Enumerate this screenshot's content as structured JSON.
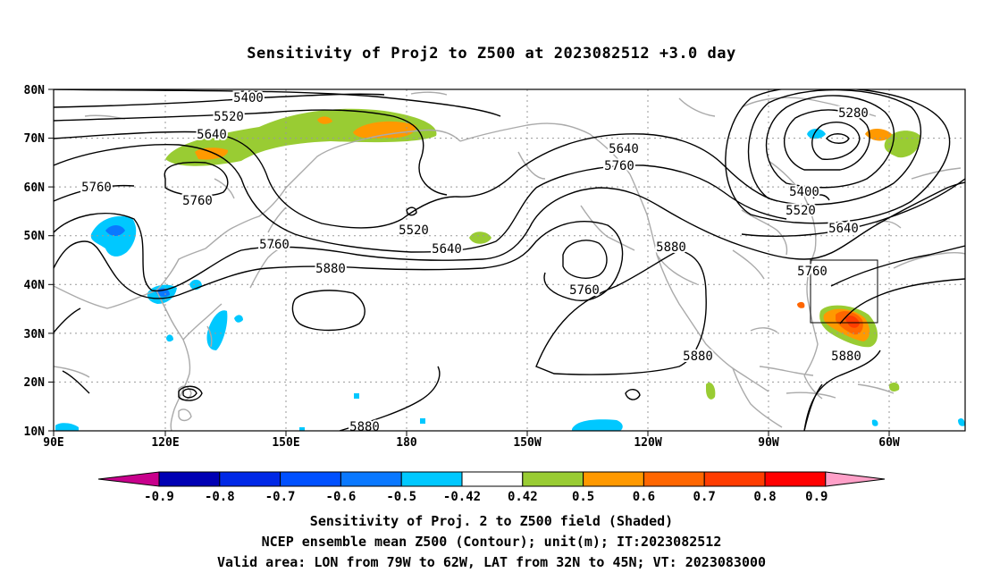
{
  "title": "Sensitivity of Proj2 to Z500 at 2023082512 +3.0 day",
  "lat_labels": [
    "80N",
    "70N",
    "60N",
    "50N",
    "40N",
    "30N",
    "20N",
    "10N"
  ],
  "lon_labels": [
    "90E",
    "120E",
    "150E",
    "180",
    "150W",
    "120W",
    "90W",
    "60W"
  ],
  "contour_labels": [
    "5400",
    "5520",
    "5640",
    "5760",
    "5760",
    "5760",
    "5520",
    "5640",
    "5760",
    "5880",
    "5880",
    "5640",
    "5760",
    "5280",
    "5400",
    "5520",
    "5640",
    "5760",
    "5880",
    "5880",
    "5880"
  ],
  "colorbar": {
    "labels": [
      "-0.9",
      "-0.8",
      "-0.7",
      "-0.6",
      "-0.5",
      "-0.42",
      "0.42",
      "0.5",
      "0.6",
      "0.7",
      "0.8",
      "0.9"
    ],
    "colors": [
      "#0000b4",
      "#0028e6",
      "#0050ff",
      "#0a78ff",
      "#00c8ff",
      "#ffffff",
      "#99cc33",
      "#ff9900",
      "#ff6600",
      "#ff3c00",
      "#ff0000"
    ],
    "low_end_color": "#c8008c",
    "high_end_color": "#ffa0c8"
  },
  "captions": [
    "Sensitivity of Proj. 2 to Z500 field (Shaded)",
    "NCEP ensemble mean Z500 (Contour); unit(m); IT:2023082512",
    "Valid area: LON from 79W to 62W, LAT from 32N to 45N; VT: 2023083000"
  ]
}
